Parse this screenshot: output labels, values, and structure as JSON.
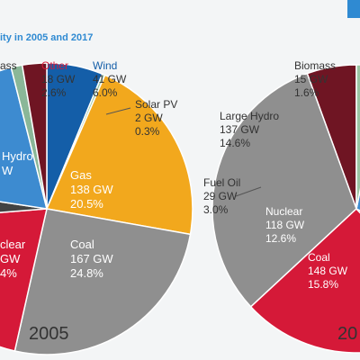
{
  "title_fragment": "ity in 2005 and 2017",
  "colors": {
    "wind": "#145ea8",
    "other": "#6f1523",
    "mass": "#8ab798",
    "solar": "#9cc8a6",
    "gas": "#f2a81d",
    "coal": "#8f8f8f",
    "nuclear": "#d51938",
    "hydro": "#3d8bd0",
    "oil": "#424242",
    "biomass": "#9bc6a4",
    "accent": "#2f8ad2",
    "label_dark": "#333333"
  },
  "chart_data": [
    {
      "type": "pie",
      "year_label": "2005",
      "slices": [
        {
          "key": "wind",
          "name": "Wind",
          "gw": "41 GW",
          "pct": "6.0%",
          "value": 6.0,
          "color": "#145ea8"
        },
        {
          "key": "solar",
          "name": "Solar PV",
          "gw": "2 GW",
          "pct": "0.3%",
          "value": 0.3,
          "color": "#9cc8a6"
        },
        {
          "key": "gas",
          "name": "Gas",
          "gw": "138 GW",
          "pct": "20.5%",
          "value": 20.5,
          "color": "#f2a81d"
        },
        {
          "key": "coal",
          "name": "Coal",
          "gw": "167 GW",
          "pct": "24.8%",
          "value": 24.8,
          "color": "#8f8f8f"
        },
        {
          "key": "nuclear",
          "name": "clear",
          "gw": "GW",
          "pct": "4%",
          "value": 19.5,
          "color": "#d51938"
        },
        {
          "key": "oil",
          "name": "",
          "gw": "",
          "pct": "",
          "value": 3.5,
          "color": "#424242"
        },
        {
          "key": "hydro",
          "name": "Hydro",
          "gw": "W",
          "pct": "",
          "value": 18.0,
          "color": "#3d8bd0"
        },
        {
          "key": "mass",
          "name": "ass",
          "gw": "",
          "pct": "",
          "value": 1.2,
          "color": "#8ab798"
        },
        {
          "key": "other",
          "name": "Other",
          "gw": "18 GW",
          "pct": "2.6%",
          "value": 2.6,
          "color": "#6f1523"
        }
      ]
    },
    {
      "type": "pie",
      "year_label": "20",
      "slices": [
        {
          "key": "other",
          "name": "",
          "gw": "",
          "pct": "",
          "value": 2.8,
          "color": "#6f1523"
        },
        {
          "key": "coal",
          "name": "Coal",
          "gw": "148 GW",
          "pct": "15.8%",
          "value": 15.8,
          "color": "#8f8f8f"
        },
        {
          "key": "nuclear",
          "name": "Nuclear",
          "gw": "118 GW",
          "pct": "12.6%",
          "value": 12.6,
          "color": "#d51938"
        },
        {
          "key": "oil",
          "name": "Fuel Oil",
          "gw": "29 GW",
          "pct": "3.0%",
          "value": 3.0,
          "color": "#424242"
        },
        {
          "key": "hydro",
          "name": "Large Hydro",
          "gw": "137 GW",
          "pct": "14.6%",
          "value": 14.6,
          "color": "#3d8bd0"
        },
        {
          "key": "biomass",
          "name": "Biomass",
          "gw": "15 GW",
          "pct": "1.6%",
          "value": 1.6,
          "color": "#9bc6a4"
        }
      ]
    }
  ]
}
